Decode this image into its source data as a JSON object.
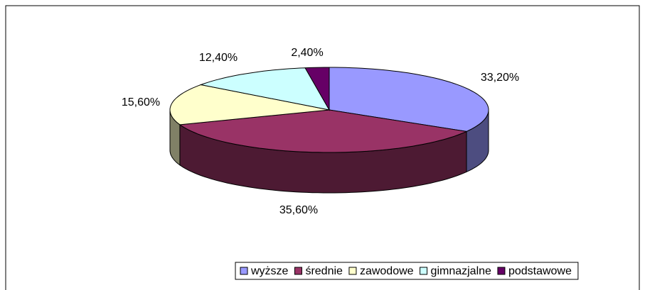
{
  "chart_data": {
    "type": "pie",
    "3d": true,
    "categories": [
      "wyższe",
      "średnie",
      "zawodowe",
      "gimnazjalne",
      "podstawowe"
    ],
    "values": [
      33.2,
      35.6,
      15.6,
      12.4,
      2.4
    ],
    "value_labels": [
      "33,20%",
      "35,60%",
      "15,60%",
      "12,40%",
      "2,40%"
    ],
    "colors": [
      "#9999ff",
      "#993366",
      "#ffffcc",
      "#ccffff",
      "#660066"
    ],
    "legend": "bottom"
  }
}
